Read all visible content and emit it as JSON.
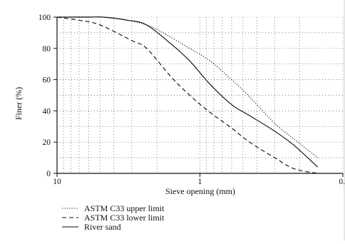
{
  "chart_data": {
    "type": "line",
    "title": "",
    "xlabel": "Sieve opening (mm)",
    "ylabel": "Finer (%)",
    "x_scale": "log",
    "x_reversed": true,
    "xlim": [
      10,
      0.1
    ],
    "ylim": [
      0,
      100
    ],
    "x_tick_labels": [
      "10",
      "1",
      "0."
    ],
    "y_ticks": [
      0,
      20,
      40,
      60,
      80,
      100
    ],
    "grid": "dotted, vertical at log minor ticks and horizontal every 10",
    "legend_position": "below plot, bottom-left",
    "series": [
      {
        "name": "ASTM C33 upper limit",
        "style": "dotted",
        "x": [
          10,
          4.75,
          3.2,
          2.36,
          1.9,
          1.18,
          0.85,
          0.6,
          0.45,
          0.3,
          0.22,
          0.15
        ],
        "y": [
          100,
          100,
          98,
          95,
          91,
          80,
          72,
          60,
          49,
          32,
          22,
          10
        ]
      },
      {
        "name": "ASTM C33 lower limit",
        "style": "dashed",
        "x": [
          10,
          7,
          5,
          3,
          2.36,
          1.6,
          1.18,
          0.85,
          0.6,
          0.45,
          0.3,
          0.22,
          0.15
        ],
        "y": [
          100,
          98,
          95,
          85,
          80,
          62,
          50,
          39,
          29,
          20,
          10,
          3,
          0
        ]
      },
      {
        "name": "River sand",
        "style": "solid",
        "x": [
          10,
          6,
          4.75,
          3.2,
          2.36,
          1.6,
          1.18,
          0.85,
          0.6,
          0.45,
          0.3,
          0.22,
          0.15
        ],
        "y": [
          100,
          100,
          100,
          98,
          95,
          83,
          72,
          57,
          44,
          37,
          27,
          18,
          4
        ]
      }
    ]
  },
  "colors": {
    "axis": "#111111",
    "grid": "#555555",
    "plot_frame": "#888888"
  }
}
